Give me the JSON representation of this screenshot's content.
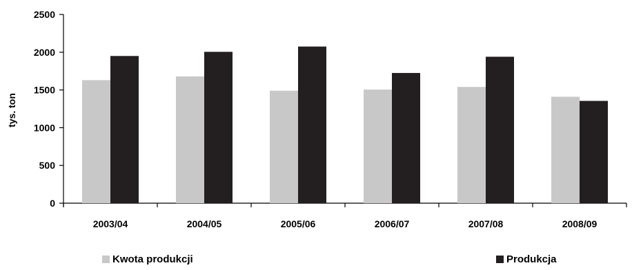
{
  "chart_data": {
    "type": "bar",
    "categories": [
      "2003/04",
      "2004/05",
      "2005/06",
      "2006/07",
      "2007/08",
      "2008/09"
    ],
    "series": [
      {
        "name": "Kwota produkcji",
        "values": [
          1630,
          1680,
          1490,
          1505,
          1540,
          1410
        ],
        "color": "#c8c8c8"
      },
      {
        "name": "Produkcja",
        "values": [
          1950,
          2005,
          2075,
          1725,
          1940,
          1355
        ],
        "color": "#231f20"
      }
    ],
    "ylabel": "tys. ton",
    "xlabel": "",
    "ylim": [
      0,
      2500
    ],
    "yticks": [
      "0",
      "500",
      "1000",
      "1500",
      "2000",
      "2500"
    ],
    "grid": false,
    "legend_position": "bottom"
  }
}
